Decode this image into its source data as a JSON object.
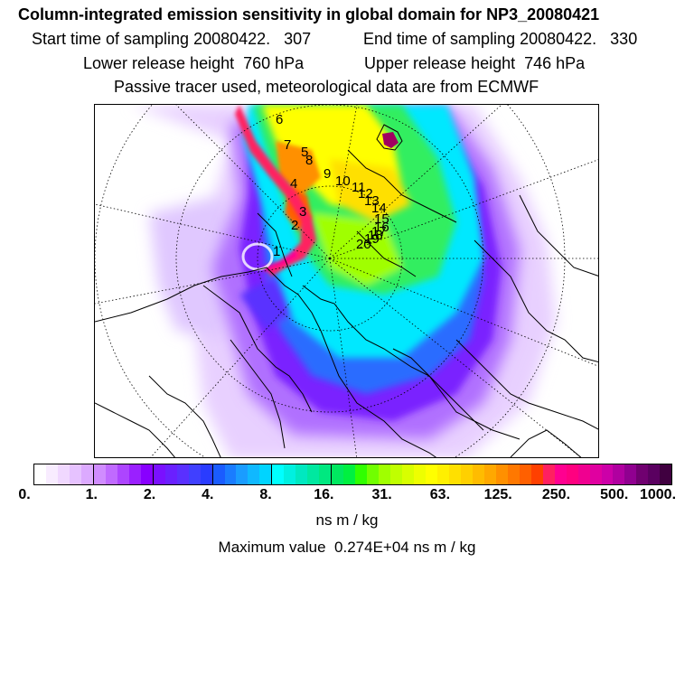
{
  "header": {
    "title": "Column-integrated emission sensitivity in global domain for NP3_20080421",
    "start_time": "Start time of sampling 20080422.   307",
    "end_time": "End time of sampling 20080422.   330",
    "lower_height": "Lower release height  760 hPa",
    "upper_height": "Upper release height  746 hPa",
    "tracer_note": "Passive tracer used, meteorological data are from ECMWF"
  },
  "map": {
    "trajectory_labels": [
      "1",
      "2",
      "3",
      "4",
      "5",
      "6",
      "7",
      "8",
      "9",
      "10",
      "11",
      "12",
      "13",
      "14",
      "15",
      "16",
      "17",
      "18",
      "19",
      "20"
    ],
    "colors": {
      "low": "#e6ccff",
      "mid": "#00ffff",
      "high": "#ffff00",
      "peak": "#ff0080"
    }
  },
  "colorbar": {
    "tick_labels": [
      "0.",
      "1.",
      "2.",
      "4.",
      "8.",
      "16.",
      "31.",
      "63.",
      "125.",
      "250.",
      "500.",
      "1000."
    ],
    "unit": "ns m / kg",
    "colors": [
      "#ffffff",
      "#f8ecff",
      "#f0d8ff",
      "#e6c2ff",
      "#dcaaff",
      "#d08cff",
      "#c06aff",
      "#ad45ff",
      "#9a20ff",
      "#8800ff",
      "#7a10ff",
      "#6a20ff",
      "#5a30ff",
      "#4040ff",
      "#2a3cff",
      "#1a5cff",
      "#1a7cff",
      "#1a9cff",
      "#10b8ff",
      "#00d4ff",
      "#00ffff",
      "#00f0e0",
      "#00e8c0",
      "#00e8a0",
      "#00e880",
      "#00e860",
      "#00f040",
      "#30ff00",
      "#70ff00",
      "#a0ff00",
      "#c0ff00",
      "#d8ff00",
      "#eeff00",
      "#ffff00",
      "#fff000",
      "#ffe000",
      "#ffd000",
      "#ffbc00",
      "#ffa800",
      "#ff9000",
      "#ff7800",
      "#ff6000",
      "#ff4000",
      "#ff2060",
      "#ff0090",
      "#ff0080",
      "#f00090",
      "#e000a0",
      "#cc00a8",
      "#b000a0",
      "#900090",
      "#700070",
      "#5a0060",
      "#400040"
    ]
  },
  "footer": {
    "max_value": "Maximum value  0.274E+04 ns m / kg"
  }
}
